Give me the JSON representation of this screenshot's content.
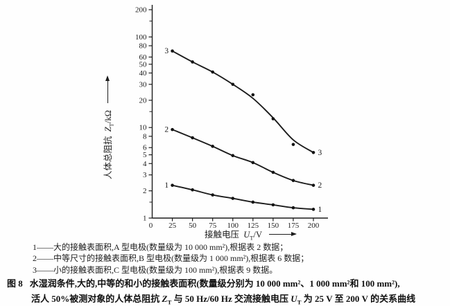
{
  "chart_data": {
    "type": "line",
    "title": "",
    "x_axis": {
      "label_prefix": "接触电压",
      "label_var": "U",
      "label_sub": "T",
      "label_suffix": "/V",
      "ticks": [
        0,
        25,
        50,
        75,
        100,
        125,
        150,
        175,
        200
      ],
      "range": [
        0,
        218
      ]
    },
    "y_axis": {
      "label_prefix": "人体总阻抗",
      "label_var": "Z",
      "label_sub": "T",
      "label_suffix": "/kΩ",
      "scale": "log",
      "ticks_labeled": [
        200,
        100,
        80,
        60,
        50,
        40,
        30,
        20,
        10,
        8,
        6,
        5,
        4,
        3,
        2,
        1
      ],
      "ticks_minor": [
        150,
        15,
        1.5
      ],
      "range": [
        1,
        250
      ]
    },
    "x": [
      25,
      50,
      75,
      100,
      125,
      150,
      175,
      200
    ],
    "series": [
      {
        "label": "1",
        "values": [
          2.3,
          2.05,
          1.8,
          1.65,
          1.5,
          1.4,
          1.3,
          1.25
        ]
      },
      {
        "label": "2",
        "values": [
          9.5,
          7.7,
          6.2,
          4.9,
          4.1,
          3.2,
          2.6,
          2.3
        ]
      },
      {
        "label": "3",
        "values": [
          70,
          53,
          41,
          30,
          23,
          12.5,
          6.5,
          5.3
        ],
        "line_values": [
          70,
          53,
          41,
          30,
          21,
          12.8,
          7.3,
          5.3
        ]
      }
    ]
  },
  "legend": {
    "lines": [
      "1——大的接触表面积,A 型电极(数量级为 10 000 mm²),根据表 2 数据；",
      "2——中等尺寸的接触表面积,B 型电极(数量级为 1 000 mm²),根据表 6 数据；",
      "3——小的接触表面积,C 型电极(数量级为 100 mm²),根据表 9 数据。"
    ]
  },
  "caption": {
    "fig_label": "图 8",
    "line1": "水湿润条件,大的,中等的和小的接触表面积(数量级分别为 10 000 mm²、1 000 mm²和 100 mm²),",
    "line2": {
      "p1": "活人 50%被测对象的人体总阻抗 ",
      "v1": "Z",
      "s1": "T",
      "p2": " 与 50 Hz/60 Hz 交流接触电压 ",
      "v2": "U",
      "s2": "T",
      "p3": " 为 25 V 至 200 V 的关系曲线"
    }
  }
}
